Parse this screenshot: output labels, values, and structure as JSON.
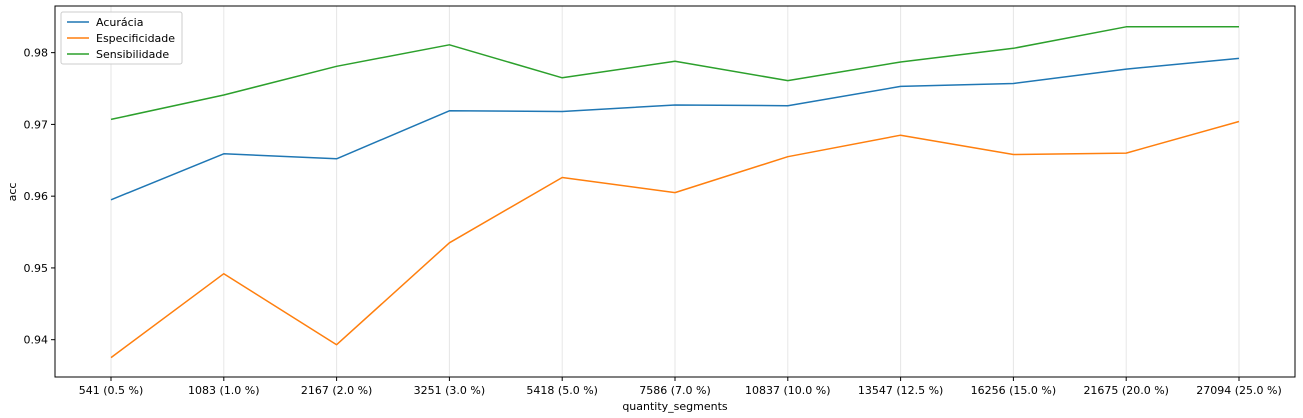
{
  "chart_data": {
    "type": "line",
    "title": "",
    "xlabel": "quantity_segments",
    "ylabel": "acc",
    "categories": [
      "541 (0.5 %)",
      "1083 (1.0 %)",
      "2167 (2.0 %)",
      "3251 (3.0 %)",
      "5418 (5.0 %)",
      "7586 (7.0 %)",
      "10837 (10.0 %)",
      "13547 (12.5 %)",
      "16256 (15.0 %)",
      "21675 (20.0 %)",
      "27094 (25.0 %)"
    ],
    "yticks": [
      "0.94",
      "0.95",
      "0.96",
      "0.97",
      "0.98"
    ],
    "ylim": [
      0.9348,
      0.9865
    ],
    "grid": "x",
    "legend": "top-left",
    "series": [
      {
        "name": "Acurácia",
        "color": "#1f77b4",
        "values": [
          0.9595,
          0.9659,
          0.9652,
          0.9719,
          0.9718,
          0.9727,
          0.9726,
          0.9753,
          0.9757,
          0.9777,
          0.9792
        ]
      },
      {
        "name": "Especificidade",
        "color": "#ff7f0e",
        "values": [
          0.9375,
          0.9492,
          0.9393,
          0.9535,
          0.9626,
          0.9605,
          0.9655,
          0.9685,
          0.9658,
          0.966,
          0.9704
        ]
      },
      {
        "name": "Sensibilidade",
        "color": "#2ca02c",
        "values": [
          0.9707,
          0.9741,
          0.9781,
          0.9811,
          0.9765,
          0.9788,
          0.9761,
          0.9787,
          0.9806,
          0.9836,
          0.9836
        ]
      }
    ]
  }
}
